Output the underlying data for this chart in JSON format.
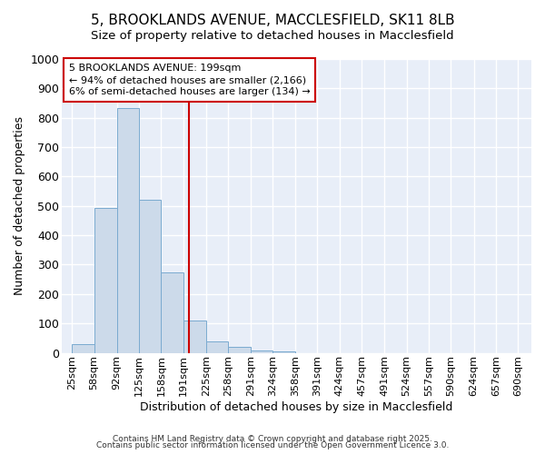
{
  "title1": "5, BROOKLANDS AVENUE, MACCLESFIELD, SK11 8LB",
  "title2": "Size of property relative to detached houses in Macclesfield",
  "xlabel": "Distribution of detached houses by size in Macclesfield",
  "ylabel": "Number of detached properties",
  "bar_lefts": [
    25,
    58,
    92,
    125,
    158,
    191,
    225,
    258,
    291,
    324,
    358,
    391,
    424,
    457,
    491,
    524,
    557,
    590,
    624,
    657
  ],
  "bar_widths": [
    33,
    34,
    33,
    33,
    33,
    34,
    33,
    33,
    33,
    34,
    33,
    33,
    33,
    34,
    33,
    33,
    33,
    34,
    33,
    33
  ],
  "bar_heights": [
    28,
    493,
    833,
    522,
    273,
    109,
    38,
    20,
    8,
    5,
    0,
    0,
    0,
    0,
    0,
    0,
    0,
    0,
    0,
    0
  ],
  "bar_color": "#ccdaea",
  "bar_edgecolor": "#7aaad0",
  "vline_x": 199,
  "vline_color": "#cc0000",
  "annotation_text": "5 BROOKLANDS AVENUE: 199sqm\n← 94% of detached houses are smaller (2,166)\n6% of semi-detached houses are larger (134) →",
  "annotation_box_edgecolor": "#cc0000",
  "xtick_labels": [
    "25sqm",
    "58sqm",
    "92sqm",
    "125sqm",
    "158sqm",
    "191sqm",
    "225sqm",
    "258sqm",
    "291sqm",
    "324sqm",
    "358sqm",
    "391sqm",
    "424sqm",
    "457sqm",
    "491sqm",
    "524sqm",
    "557sqm",
    "590sqm",
    "624sqm",
    "657sqm",
    "690sqm"
  ],
  "xtick_positions": [
    25,
    58,
    92,
    125,
    158,
    191,
    225,
    258,
    291,
    324,
    358,
    391,
    424,
    457,
    491,
    524,
    557,
    590,
    624,
    657,
    690
  ],
  "ylim": [
    0,
    1000
  ],
  "yticks": [
    0,
    100,
    200,
    300,
    400,
    500,
    600,
    700,
    800,
    900,
    1000
  ],
  "xlim_min": 10,
  "xlim_max": 710,
  "background_color": "#e8eef8",
  "fig_background": "#ffffff",
  "grid_color": "#ffffff",
  "footer_line1": "Contains HM Land Registry data © Crown copyright and database right 2025.",
  "footer_line2": "Contains public sector information licensed under the Open Government Licence 3.0.",
  "title_fontsize": 11,
  "subtitle_fontsize": 9.5,
  "annotation_fontsize": 8,
  "ylabel_fontsize": 9,
  "xlabel_fontsize": 9,
  "ytick_fontsize": 9,
  "xtick_fontsize": 8
}
